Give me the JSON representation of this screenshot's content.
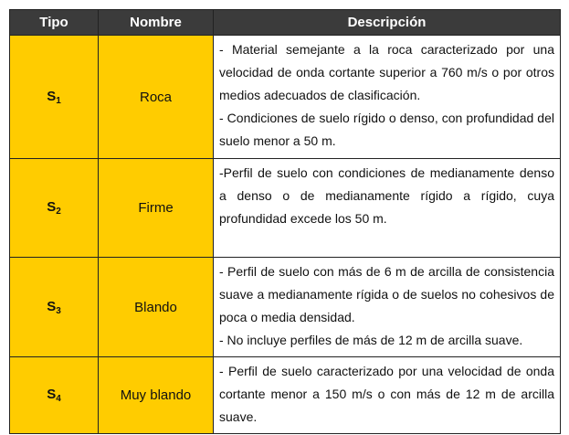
{
  "header": {
    "tipo": "Tipo",
    "nombre": "Nombre",
    "descripcion": "Descripción"
  },
  "colors": {
    "header_bg": "#3b3b3b",
    "highlight": "#ffcc00"
  },
  "rows": [
    {
      "tipo": "S",
      "sub": "1",
      "nombre": "Roca",
      "desc": [
        "- Material semejante a la roca caracterizado por una velocidad de onda cortante superior a 760 m/s o por otros medios adecuados de clasificación.",
        "- Condiciones de suelo rígido o denso, con profundidad del suelo menor a 50 m."
      ]
    },
    {
      "tipo": "S",
      "sub": "2",
      "nombre": "Firme",
      "desc": [
        "-Perfil de suelo con condiciones de medianamente denso a denso o de medianamente rígido a rígido, cuya profundidad excede los 50 m."
      ]
    },
    {
      "tipo": "S",
      "sub": "3",
      "nombre": "Blando",
      "desc": [
        "- Perfil de suelo con más de 6 m de arcilla de consistencia suave a medianamente rígida o de suelos no cohesivos de poca o media densidad.",
        "- No incluye perfiles de más de 12 m de arcilla suave."
      ]
    },
    {
      "tipo": "S",
      "sub": "4",
      "nombre": "Muy blando",
      "desc": [
        "- Perfil de suelo caracterizado por una velocidad de onda cortante menor a 150 m/s o con más de 12 m de arcilla suave."
      ]
    }
  ]
}
